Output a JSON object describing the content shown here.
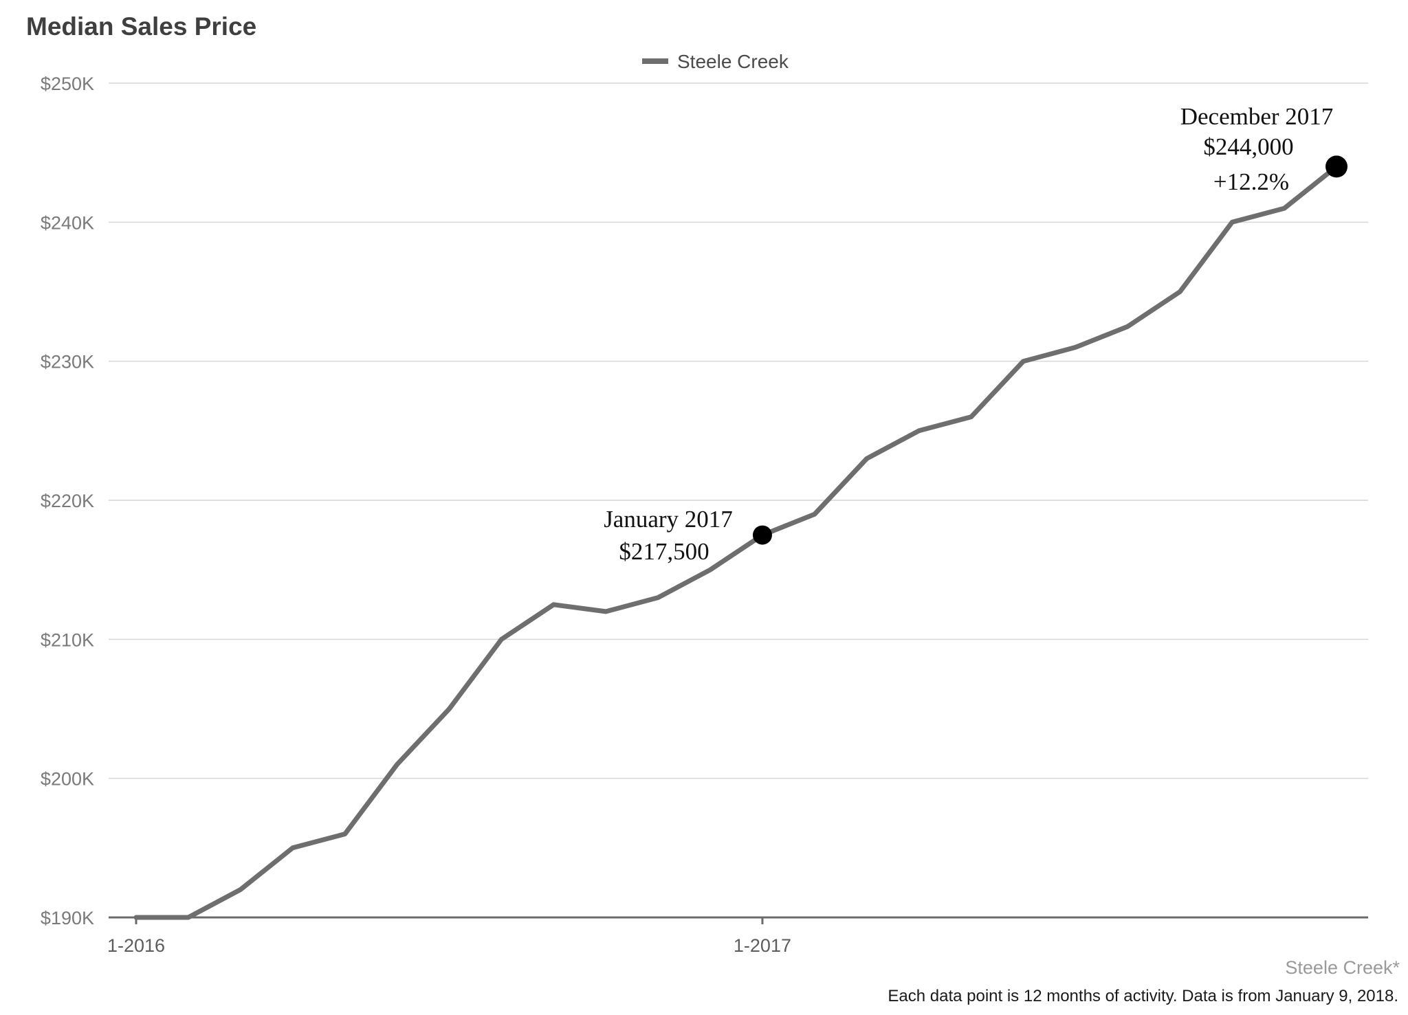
{
  "chart_data": {
    "type": "line",
    "title": "Median Sales Price",
    "legend": {
      "position": "top-center",
      "entries": [
        "Steele Creek"
      ]
    },
    "y_ticks": [
      "$190K",
      "$200K",
      "$210K",
      "$220K",
      "$230K",
      "$240K",
      "$250K"
    ],
    "y_tick_values": [
      190000,
      200000,
      210000,
      220000,
      230000,
      240000,
      250000
    ],
    "ylim": [
      190000,
      250000
    ],
    "x_ticks": [
      "1-2016",
      "1-2017"
    ],
    "x_tick_index": [
      0,
      12
    ],
    "x": [
      "1-2016",
      "2-2016",
      "3-2016",
      "4-2016",
      "5-2016",
      "6-2016",
      "7-2016",
      "8-2016",
      "9-2016",
      "10-2016",
      "11-2016",
      "12-2016",
      "1-2017",
      "2-2017",
      "3-2017",
      "4-2017",
      "5-2017",
      "6-2017",
      "7-2017",
      "8-2017",
      "9-2017",
      "10-2017",
      "11-2017",
      "12-2017"
    ],
    "grid": true,
    "series": [
      {
        "name": "Steele Creek",
        "color": "#6e6e6e",
        "values": [
          190000,
          190000,
          192000,
          195000,
          196000,
          201000,
          205000,
          210000,
          212500,
          212000,
          213000,
          215000,
          217500,
          219000,
          223000,
          225000,
          226000,
          230000,
          231000,
          232500,
          235000,
          240000,
          241000,
          244000
        ]
      }
    ],
    "annotations": [
      {
        "index": 12,
        "value": 217500,
        "lines": [
          "January 2017",
          "$217,500"
        ]
      },
      {
        "index": 23,
        "value": 244000,
        "lines": [
          "December 2017",
          "$244,000",
          "+12.2%"
        ]
      }
    ],
    "source_label": "Steele Creek*",
    "footnote": "Each data point is 12 months of activity. Data is from January 9, 2018."
  }
}
